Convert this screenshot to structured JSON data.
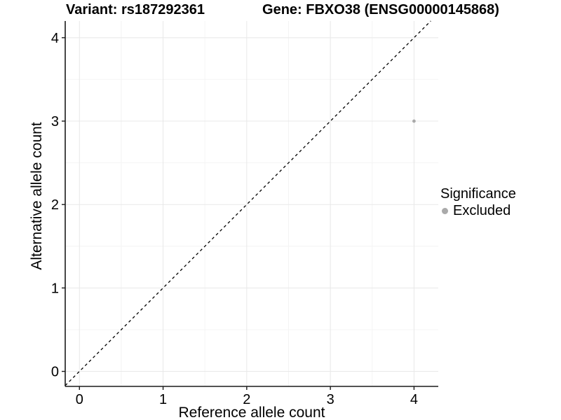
{
  "titles": {
    "variant": "Variant: rs187292361",
    "gene": "Gene: FBXO38 (ENSG00000145868)"
  },
  "x_axis": {
    "label": "Reference allele count"
  },
  "y_axis": {
    "label": "Alternative allele count"
  },
  "legend": {
    "title": "Significance",
    "items": [
      {
        "label": "Excluded",
        "color": "#aaaaaa"
      }
    ]
  },
  "chart_data": {
    "type": "scatter",
    "title": "Variant: rs187292361 | Gene: FBXO38 (ENSG00000145868)",
    "xlabel": "Reference allele count",
    "ylabel": "Alternative allele count",
    "xlim": [
      -0.17,
      4.29
    ],
    "ylim": [
      -0.18,
      4.2
    ],
    "x_ticks": [
      0,
      1,
      2,
      3,
      4
    ],
    "y_ticks": [
      0,
      1,
      2,
      3,
      4
    ],
    "x_minor_ticks": [
      0.5,
      1.5,
      2.5,
      3.5
    ],
    "y_minor_ticks": [
      0.5,
      1.5,
      2.5,
      3.5
    ],
    "grid": "major+minor",
    "series": [
      {
        "name": "Excluded",
        "color": "#aaaaaa",
        "marker": "circle",
        "point_radius": 2.4,
        "points": [
          {
            "x": 4,
            "y": 3
          }
        ]
      }
    ],
    "reference_line": {
      "kind": "identity",
      "style": "dashed",
      "color": "#000000"
    },
    "legend_position": "right",
    "colors": {
      "grid_major": "#e8e8e8",
      "grid_minor": "#f4f4f4",
      "axis_line": "#1a1a1a",
      "tick": "#1a1a1a",
      "text": "#000000",
      "background": "#ffffff"
    }
  }
}
